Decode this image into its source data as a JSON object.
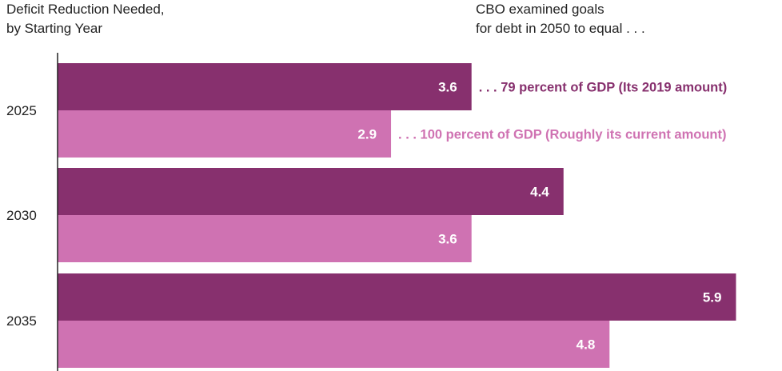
{
  "chart_data": {
    "type": "bar",
    "orientation": "horizontal",
    "title_lines": [
      "Deficit Reduction Needed,",
      "by Starting Year"
    ],
    "legend_title_lines": [
      "CBO examined goals",
      "for debt in 2050 to equal . . ."
    ],
    "categories": [
      "2025",
      "2030",
      "2035"
    ],
    "series": [
      {
        "name": ". . . 79 percent of GDP (Its 2019 amount)",
        "values": [
          3.6,
          4.4,
          5.9
        ]
      },
      {
        "name": ". . . 100 percent of GDP (Roughly its current amount)",
        "values": [
          2.9,
          3.6,
          4.8
        ]
      }
    ],
    "data_labels": [
      [
        "3.6",
        "4.4",
        "5.9"
      ],
      [
        "2.9",
        "3.6",
        "4.8"
      ]
    ],
    "xlim": [
      0,
      6.3
    ],
    "grid": false,
    "legend_placement": "inline-right-of-first-bars",
    "colors": {
      "series1": "#87306e",
      "series2": "#cf72b2",
      "text": "#222222",
      "axis": "#222222"
    }
  }
}
